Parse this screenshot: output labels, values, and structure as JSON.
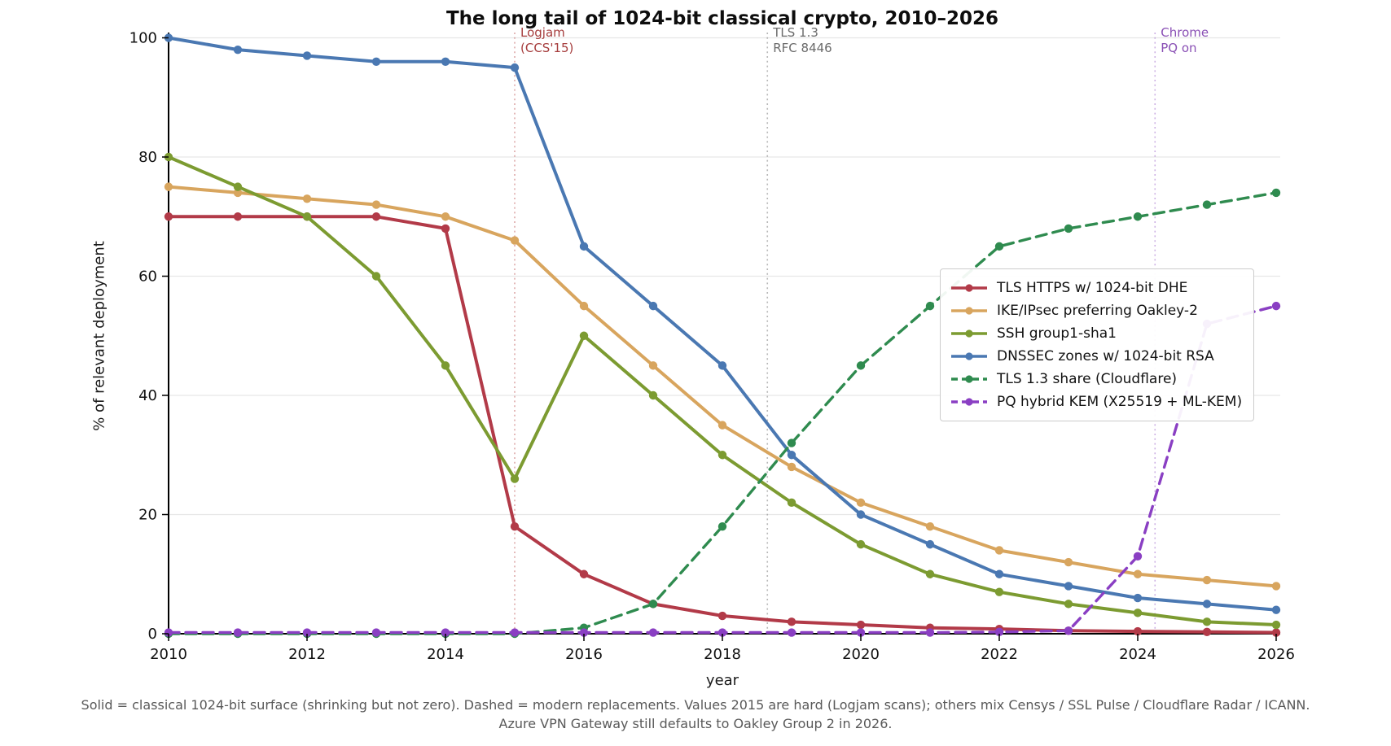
{
  "chart_data": {
    "type": "line",
    "title": "The long tail of 1024-bit classical crypto, 2010–2026",
    "xlabel": "year",
    "ylabel": "% of relevant deployment",
    "x": [
      2010,
      2011,
      2012,
      2013,
      2014,
      2015,
      2016,
      2017,
      2018,
      2019,
      2020,
      2021,
      2022,
      2023,
      2024,
      2025,
      2026
    ],
    "xticks": [
      2010,
      2012,
      2014,
      2016,
      2018,
      2020,
      2022,
      2024,
      2026
    ],
    "yticks": [
      0,
      20,
      40,
      60,
      80,
      100
    ],
    "xlim": [
      2010,
      2026.1
    ],
    "ylim": [
      0,
      100
    ],
    "grid": "horizontal",
    "legend_position": "center-right",
    "series": [
      {
        "name": "TLS HTTPS w/ 1024-bit DHE",
        "color": "#b23a48",
        "style": "solid",
        "values": [
          70,
          70,
          70,
          70,
          68,
          18,
          10,
          5,
          3,
          2,
          1.5,
          1,
          0.8,
          0.5,
          0.4,
          0.3,
          0.2
        ]
      },
      {
        "name": "IKE/IPsec preferring Oakley-2",
        "color": "#d8a55e",
        "style": "solid",
        "values": [
          75,
          74,
          73,
          72,
          70,
          66,
          55,
          45,
          35,
          28,
          22,
          18,
          14,
          12,
          10,
          9,
          8
        ]
      },
      {
        "name": "SSH group1-sha1",
        "color": "#7c9b31",
        "style": "solid",
        "values": [
          80,
          75,
          70,
          60,
          45,
          26,
          50,
          40,
          30,
          22,
          15,
          10,
          7,
          5,
          3.5,
          2,
          1.5
        ]
      },
      {
        "name": "DNSSEC zones w/ 1024-bit RSA",
        "color": "#4a78b2",
        "style": "solid",
        "values": [
          100,
          98,
          97,
          96,
          96,
          95,
          65,
          55,
          45,
          30,
          20,
          15,
          10,
          8,
          6,
          5,
          4
        ]
      },
      {
        "name": "TLS 1.3 share (Cloudflare)",
        "color": "#2f8b4f",
        "style": "dashed",
        "values": [
          0,
          0,
          0,
          0,
          0,
          0,
          1,
          5,
          18,
          32,
          45,
          55,
          65,
          68,
          70,
          72,
          74
        ]
      },
      {
        "name": "PQ hybrid KEM (X25519 + ML-KEM)",
        "color": "#8a3fc3",
        "style": "dashed",
        "values": [
          0.2,
          0.2,
          0.2,
          0.2,
          0.2,
          0.2,
          0.2,
          0.2,
          0.2,
          0.2,
          0.2,
          0.2,
          0.3,
          0.5,
          13,
          52,
          55
        ]
      }
    ],
    "events": [
      {
        "key": "logjam",
        "year": 2015,
        "line1": "Logjam",
        "line2": "(CCS'15)",
        "text_color": "#a63d3d",
        "line_color": "rgba(194,98,98,0.55)"
      },
      {
        "key": "tls13-rfc",
        "year": 2018.65,
        "line1": "TLS 1.3",
        "line2": "RFC 8446",
        "text_color": "#6a6a6a",
        "line_color": "rgba(135,135,135,0.6)"
      },
      {
        "key": "chrome-pq",
        "year": 2024.25,
        "line1": "Chrome",
        "line2": "PQ on",
        "text_color": "#8a50b5",
        "line_color": "rgba(165,115,205,0.55)"
      }
    ],
    "caption_line1": "Solid = classical 1024-bit surface (shrinking but not zero). Dashed = modern replacements. Values 2015 are hard (Logjam scans); others mix Censys / SSL Pulse / Cloudflare Radar / ICANN.",
    "caption_line2": "Azure VPN Gateway still defaults to Oakley Group 2 in 2026."
  }
}
